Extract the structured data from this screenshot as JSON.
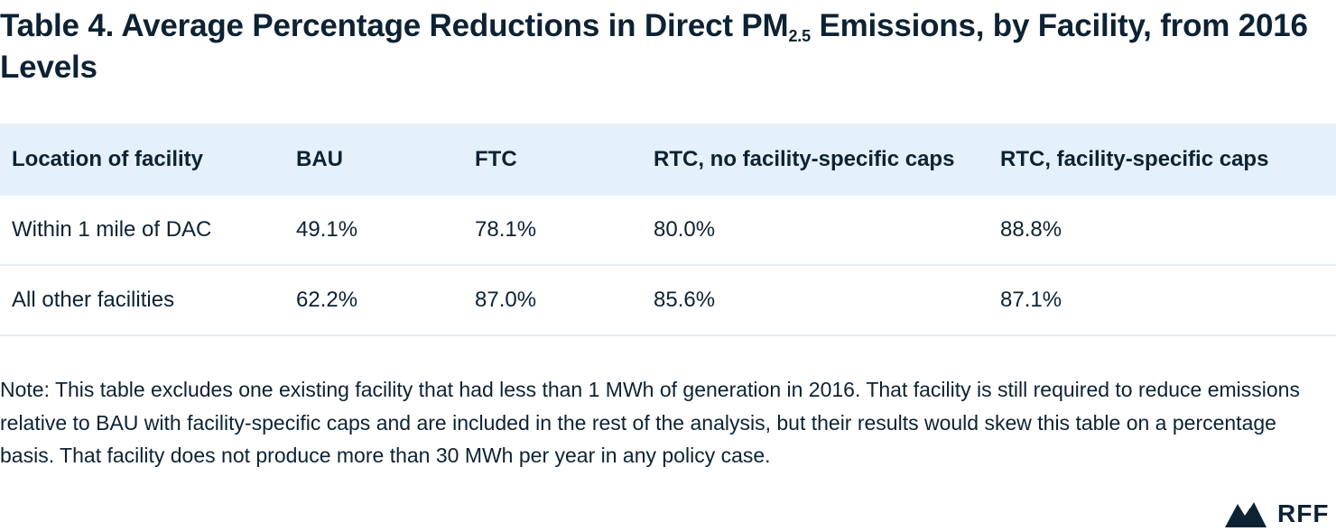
{
  "title": {
    "part1": "Table 4.  Average Percentage Reductions in Direct PM",
    "subscript": "2.5",
    "part2": " Emissions, by Facility, from 2016 Levels"
  },
  "table": {
    "headers": [
      "Location of facility",
      "BAU",
      "FTC",
      "RTC, no facility-specific caps",
      "RTC, facility-specific caps"
    ],
    "rows": [
      [
        "Within 1 mile of DAC",
        "49.1%",
        "78.1%",
        "80.0%",
        "88.8%"
      ],
      [
        "All other facilities",
        "62.2%",
        "87.0%",
        "85.6%",
        "87.1%"
      ]
    ]
  },
  "note": "Note: This table excludes one existing facility that had less than 1 MWh of generation in 2016. That facility is still required to reduce emissions relative to BAU with facility-specific caps and are included in the rest of the analysis, but their results would skew this table on a percentage basis. That facility does not produce more than 30 MWh per year in any policy case.",
  "logo": {
    "text": "RFF",
    "icon": "mountain-logo-icon"
  },
  "colors": {
    "text": "#0d2233",
    "header_background": "#e4f1fa",
    "row_divider": "#e3eef6"
  }
}
